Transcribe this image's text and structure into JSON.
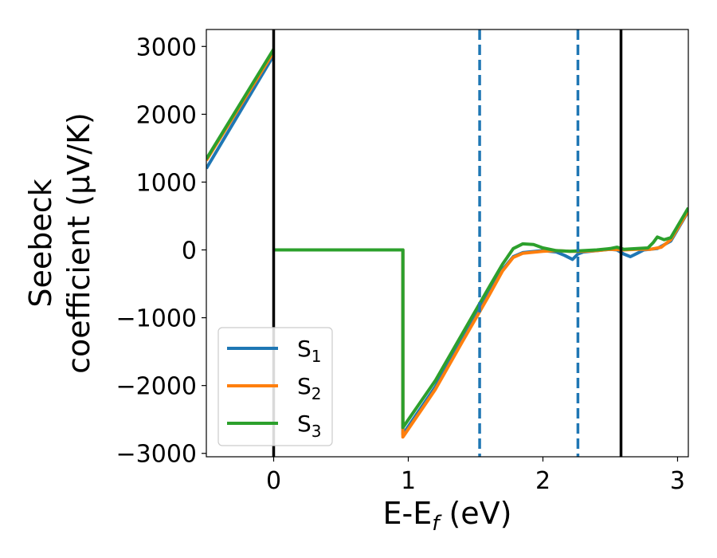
{
  "chart_data": {
    "type": "line",
    "xlabel": "E-E_f (eV)",
    "xlabel_parts": {
      "pre": "E-E",
      "sub": "f",
      "post": " (eV)"
    },
    "ylabel_line1": "Seebeck",
    "ylabel_line2": "coefficient  (μV/K)",
    "xlim": [
      -0.5,
      3.08
    ],
    "ylim": [
      -3050,
      3250
    ],
    "xticks": [
      0,
      1,
      2,
      3
    ],
    "xtick_labels": [
      "0",
      "1",
      "2",
      "3"
    ],
    "yticks": [
      -3000,
      -2000,
      -1000,
      0,
      1000,
      2000,
      3000
    ],
    "ytick_labels": [
      "−3000",
      "−2000",
      "−1000",
      "0",
      "1000",
      "2000",
      "3000"
    ],
    "grid": false,
    "legend_position": "lower-left",
    "vlines": [
      {
        "x": 0.0,
        "style": "solid",
        "color": "#000000"
      },
      {
        "x": 2.58,
        "style": "solid",
        "color": "#000000"
      },
      {
        "x": 1.53,
        "style": "dashed",
        "color": "#1f77b4"
      },
      {
        "x": 2.26,
        "style": "dashed",
        "color": "#1f77b4"
      }
    ],
    "series": [
      {
        "name": "S_1",
        "label_parts": {
          "base": "S",
          "sub": "1"
        },
        "color": "#1f77b4",
        "segments": [
          [
            [
              -0.5,
              1200
            ],
            [
              0.0,
              2870
            ]
          ],
          [
            [
              0.0,
              0
            ],
            [
              0.96,
              0
            ],
            [
              0.96,
              -2720
            ],
            [
              1.2,
              -2020
            ],
            [
              1.4,
              -1330
            ],
            [
              1.6,
              -640
            ],
            [
              1.7,
              -290
            ],
            [
              1.78,
              -100
            ],
            [
              1.85,
              -40
            ],
            [
              2.0,
              -10
            ],
            [
              2.1,
              -30
            ],
            [
              2.16,
              -80
            ],
            [
              2.22,
              -140
            ],
            [
              2.26,
              -60
            ],
            [
              2.3,
              -30
            ],
            [
              2.4,
              -10
            ],
            [
              2.5,
              10
            ],
            [
              2.55,
              0
            ],
            [
              2.6,
              -60
            ],
            [
              2.65,
              -100
            ],
            [
              2.7,
              -50
            ],
            [
              2.75,
              0
            ],
            [
              2.85,
              20
            ],
            [
              2.95,
              130
            ],
            [
              3.08,
              570
            ]
          ]
        ]
      },
      {
        "name": "S_2",
        "label_parts": {
          "base": "S",
          "sub": "2"
        },
        "color": "#ff7f0e",
        "segments": [
          [
            [
              -0.5,
              1320
            ],
            [
              0.0,
              2920
            ]
          ],
          [
            [
              0.0,
              0
            ],
            [
              0.96,
              0
            ],
            [
              0.96,
              -2760
            ],
            [
              1.2,
              -2060
            ],
            [
              1.4,
              -1360
            ],
            [
              1.6,
              -670
            ],
            [
              1.7,
              -310
            ],
            [
              1.78,
              -110
            ],
            [
              1.85,
              -50
            ],
            [
              2.0,
              -20
            ],
            [
              2.1,
              -10
            ],
            [
              2.2,
              -20
            ],
            [
              2.3,
              -20
            ],
            [
              2.4,
              -10
            ],
            [
              2.5,
              10
            ],
            [
              2.6,
              0
            ],
            [
              2.7,
              10
            ],
            [
              2.8,
              10
            ],
            [
              2.88,
              40
            ],
            [
              2.95,
              150
            ],
            [
              3.08,
              580
            ]
          ]
        ]
      },
      {
        "name": "S_3",
        "label_parts": {
          "base": "S",
          "sub": "3"
        },
        "color": "#2ca02c",
        "segments": [
          [
            [
              -0.5,
              1340
            ],
            [
              0.0,
              2960
            ]
          ],
          [
            [
              0.0,
              0
            ],
            [
              0.96,
              0
            ],
            [
              0.96,
              -2620
            ],
            [
              1.2,
              -1930
            ],
            [
              1.4,
              -1240
            ],
            [
              1.6,
              -550
            ],
            [
              1.7,
              -210
            ],
            [
              1.78,
              20
            ],
            [
              1.85,
              90
            ],
            [
              1.93,
              80
            ],
            [
              2.0,
              30
            ],
            [
              2.1,
              -10
            ],
            [
              2.2,
              -20
            ],
            [
              2.3,
              -10
            ],
            [
              2.4,
              0
            ],
            [
              2.5,
              20
            ],
            [
              2.55,
              40
            ],
            [
              2.6,
              10
            ],
            [
              2.7,
              20
            ],
            [
              2.78,
              30
            ],
            [
              2.82,
              110
            ],
            [
              2.85,
              190
            ],
            [
              2.9,
              150
            ],
            [
              2.95,
              180
            ],
            [
              3.08,
              620
            ]
          ]
        ]
      }
    ]
  }
}
